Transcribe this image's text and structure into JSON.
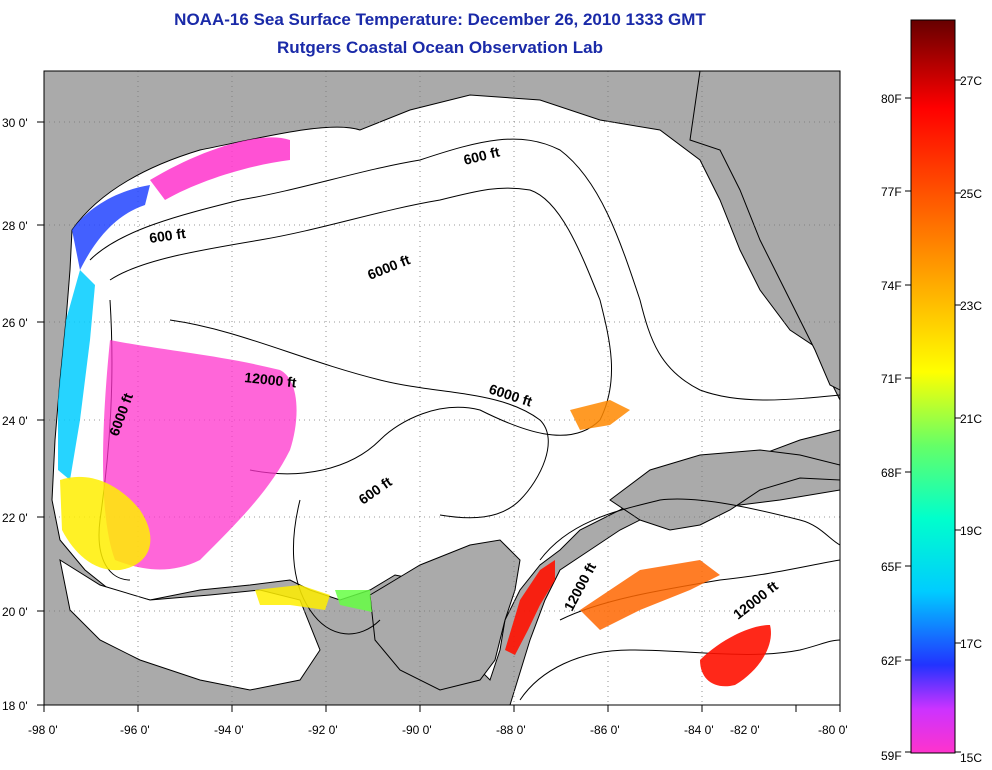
{
  "title": "NOAA-16 Sea Surface Temperature:  December 26, 2010 1333 GMT",
  "subtitle": "Rutgers Coastal Ocean Observation Lab",
  "map": {
    "lon_range": [
      -98,
      -80
    ],
    "lat_range": [
      18,
      31
    ],
    "lon_ticks": [
      {
        "v": -98,
        "label": "-98 0'"
      },
      {
        "v": -96,
        "label": "-96 0'"
      },
      {
        "v": -94,
        "label": "-94 0'"
      },
      {
        "v": -92,
        "label": "-92 0'"
      },
      {
        "v": -90,
        "label": "-90 0'"
      },
      {
        "v": -88,
        "label": "-88 0'"
      },
      {
        "v": -86,
        "label": "-86 0'"
      },
      {
        "v": -84,
        "label": "-84 0'"
      },
      {
        "v": -82,
        "label": "-82 0'"
      },
      {
        "v": -80,
        "label": "-80 0'"
      }
    ],
    "lat_ticks": [
      {
        "v": 18,
        "label": "18 0'"
      },
      {
        "v": 20,
        "label": "20 0'"
      },
      {
        "v": 22,
        "label": "22 0'"
      },
      {
        "v": 24,
        "label": "24 0'"
      },
      {
        "v": 26,
        "label": "26 0'"
      },
      {
        "v": 28,
        "label": "28 0'"
      },
      {
        "v": 30,
        "label": "30 0'"
      }
    ],
    "contour_labels": [
      "600 ft",
      "600 ft",
      "6000 ft",
      "12000 ft",
      "6000 ft",
      "6000 ft",
      "600 ft",
      "12000 ft",
      "12000 ft"
    ],
    "land_color": "#aaaaaa",
    "ocean_color": "#ffffff"
  },
  "colorbar": {
    "range_c": [
      15,
      28.5
    ],
    "left_labels": [
      "80F",
      "77F",
      "74F",
      "71F",
      "68F",
      "65F",
      "62F",
      "59F"
    ],
    "right_labels": [
      "27C",
      "25C",
      "23C",
      "21C",
      "19C",
      "17C",
      "15C"
    ]
  }
}
